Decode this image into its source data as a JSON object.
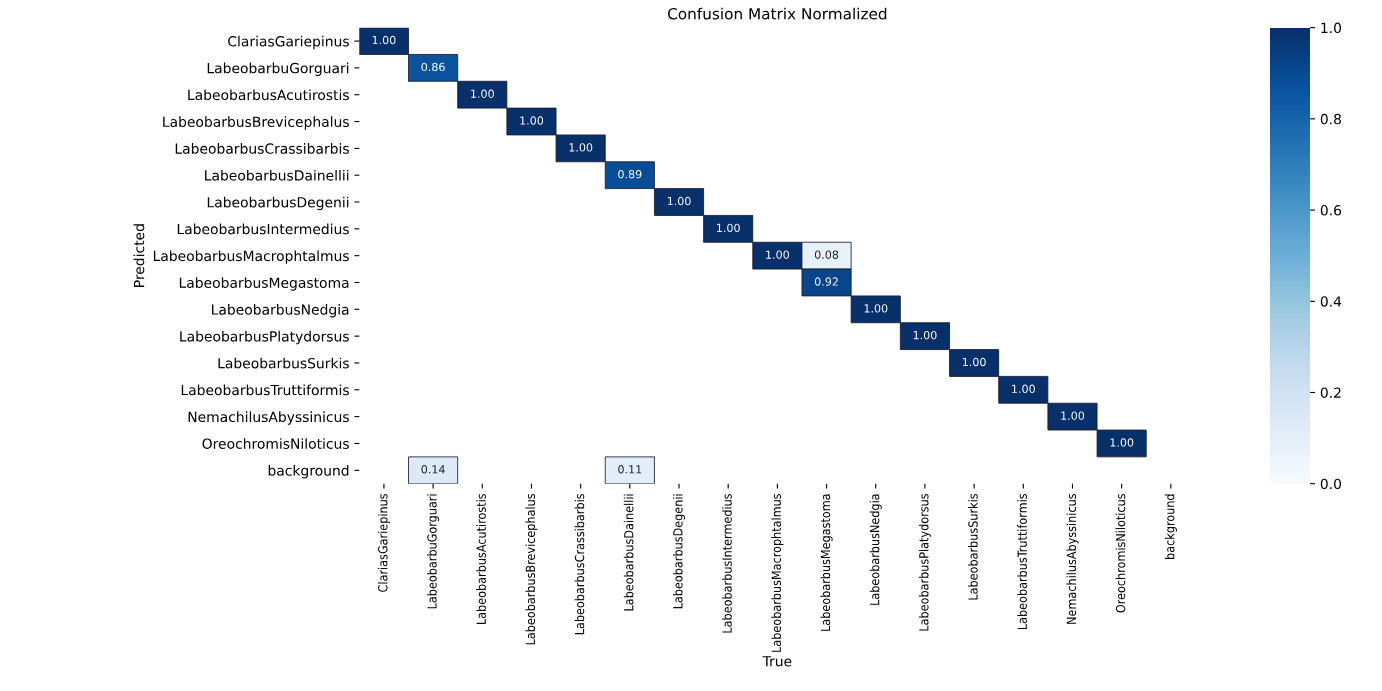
{
  "chart_data": {
    "type": "heatmap",
    "title": "Confusion Matrix Normalized",
    "xlabel": "True",
    "ylabel": "Predicted",
    "categories": [
      "ClariasGariepinus",
      "LabeobarbuGorguari",
      "LabeobarbusAcutirostis",
      "LabeobarbusBrevicephalus",
      "LabeobarbusCrassibarbis",
      "LabeobarbusDainellii",
      "LabeobarbusDegenii",
      "LabeobarbusIntermedius",
      "LabeobarbusMacrophtalmus",
      "LabeobarbusMegastoma",
      "LabeobarbusNedgia",
      "LabeobarbusPlatydorsus",
      "LabeobarbusSurkis",
      "LabeobarbusTruttiformis",
      "NemachilusAbyssinicus",
      "OreochromisNiloticus",
      "background"
    ],
    "y_categories": [
      "ClariasGariepinus",
      "LabeobarbuGorguari",
      "LabeobarbusAcutirostis",
      "LabeobarbusBrevicephalus",
      "LabeobarbusCrassibarbis",
      "LabeobarbusDainellii",
      "LabeobarbusDegenii",
      "LabeobarbusIntermedius",
      "LabeobarbusMacrophtalmus",
      "LabeobarbusMegastoma",
      "LabeobarbusNedgia",
      "LabeobarbusPlatydorsus",
      "LabeobarbusSurkis",
      "LabeobarbusTruttiformis",
      "NemachilusAbyssinicus",
      "OreochromisNiloticus",
      "background"
    ],
    "cells": [
      [
        1.0,
        null,
        null,
        null,
        null,
        null,
        null,
        null,
        null,
        null,
        null,
        null,
        null,
        null,
        null,
        null,
        null
      ],
      [
        null,
        0.86,
        null,
        null,
        null,
        null,
        null,
        null,
        null,
        null,
        null,
        null,
        null,
        null,
        null,
        null,
        null
      ],
      [
        null,
        null,
        1.0,
        null,
        null,
        null,
        null,
        null,
        null,
        null,
        null,
        null,
        null,
        null,
        null,
        null,
        null
      ],
      [
        null,
        null,
        null,
        1.0,
        null,
        null,
        null,
        null,
        null,
        null,
        null,
        null,
        null,
        null,
        null,
        null,
        null
      ],
      [
        null,
        null,
        null,
        null,
        1.0,
        null,
        null,
        null,
        null,
        null,
        null,
        null,
        null,
        null,
        null,
        null,
        null
      ],
      [
        null,
        null,
        null,
        null,
        null,
        0.89,
        null,
        null,
        null,
        null,
        null,
        null,
        null,
        null,
        null,
        null,
        null
      ],
      [
        null,
        null,
        null,
        null,
        null,
        null,
        1.0,
        null,
        null,
        null,
        null,
        null,
        null,
        null,
        null,
        null,
        null
      ],
      [
        null,
        null,
        null,
        null,
        null,
        null,
        null,
        1.0,
        null,
        null,
        null,
        null,
        null,
        null,
        null,
        null,
        null
      ],
      [
        null,
        null,
        null,
        null,
        null,
        null,
        null,
        null,
        1.0,
        0.08,
        null,
        null,
        null,
        null,
        null,
        null,
        null
      ],
      [
        null,
        null,
        null,
        null,
        null,
        null,
        null,
        null,
        null,
        0.92,
        null,
        null,
        null,
        null,
        null,
        null,
        null
      ],
      [
        null,
        null,
        null,
        null,
        null,
        null,
        null,
        null,
        null,
        null,
        1.0,
        null,
        null,
        null,
        null,
        null,
        null
      ],
      [
        null,
        null,
        null,
        null,
        null,
        null,
        null,
        null,
        null,
        null,
        null,
        1.0,
        null,
        null,
        null,
        null,
        null
      ],
      [
        null,
        null,
        null,
        null,
        null,
        null,
        null,
        null,
        null,
        null,
        null,
        null,
        1.0,
        null,
        null,
        null,
        null
      ],
      [
        null,
        null,
        null,
        null,
        null,
        null,
        null,
        null,
        null,
        null,
        null,
        null,
        null,
        1.0,
        null,
        null,
        null
      ],
      [
        null,
        null,
        null,
        null,
        null,
        null,
        null,
        null,
        null,
        null,
        null,
        null,
        null,
        null,
        1.0,
        null,
        null
      ],
      [
        null,
        null,
        null,
        null,
        null,
        null,
        null,
        null,
        null,
        null,
        null,
        null,
        null,
        null,
        null,
        1.0,
        null
      ],
      [
        null,
        0.14,
        null,
        null,
        null,
        0.11,
        null,
        null,
        null,
        null,
        null,
        null,
        null,
        null,
        null,
        null,
        null
      ]
    ],
    "clim": [
      0.0,
      1.0
    ],
    "cticks": [
      {
        "value": 0.0,
        "label": "0.0"
      },
      0.2,
      0.4,
      0.6,
      0.8,
      {
        "value": 1.0,
        "label": "1.0"
      }
    ],
    "cell_labels": [
      [
        "1.00",
        null,
        null,
        null,
        null,
        null,
        null,
        null,
        null,
        null,
        null,
        null,
        null,
        null,
        null,
        null,
        null
      ],
      [
        null,
        "0.86",
        null,
        null,
        null,
        null,
        null,
        null,
        null,
        null,
        null,
        null,
        null,
        null,
        null,
        null,
        null
      ],
      [
        null,
        null,
        "1.00",
        null,
        null,
        null,
        null,
        null,
        null,
        null,
        null,
        null,
        null,
        null,
        null,
        null,
        null
      ],
      [
        null,
        null,
        null,
        "1.00",
        null,
        null,
        null,
        null,
        null,
        null,
        null,
        null,
        null,
        null,
        null,
        null,
        null
      ],
      [
        null,
        null,
        null,
        null,
        "1.00",
        null,
        null,
        null,
        null,
        null,
        null,
        null,
        null,
        null,
        null,
        null,
        null
      ],
      [
        null,
        null,
        null,
        null,
        null,
        "0.89",
        null,
        null,
        null,
        null,
        null,
        null,
        null,
        null,
        null,
        null,
        null
      ],
      [
        null,
        null,
        null,
        null,
        null,
        null,
        "1.00",
        null,
        null,
        null,
        null,
        null,
        null,
        null,
        null,
        null,
        null
      ],
      [
        null,
        null,
        null,
        null,
        null,
        null,
        null,
        "1.00",
        null,
        null,
        null,
        null,
        null,
        null,
        null,
        null,
        null
      ],
      [
        null,
        null,
        null,
        null,
        null,
        null,
        null,
        null,
        "1.00",
        "0.08",
        null,
        null,
        null,
        null,
        null,
        null,
        null
      ],
      [
        null,
        null,
        null,
        null,
        null,
        null,
        null,
        null,
        null,
        "0.92",
        null,
        null,
        null,
        null,
        null,
        null,
        null
      ],
      [
        null,
        null,
        null,
        null,
        null,
        null,
        null,
        null,
        null,
        null,
        "1.00",
        null,
        null,
        null,
        null,
        null,
        null
      ],
      [
        null,
        null,
        null,
        null,
        null,
        null,
        null,
        null,
        null,
        null,
        null,
        "1.00",
        null,
        null,
        null,
        null,
        null
      ],
      [
        null,
        null,
        null,
        null,
        null,
        null,
        null,
        null,
        null,
        null,
        null,
        null,
        "1.00",
        null,
        null,
        null,
        null
      ],
      [
        null,
        null,
        null,
        null,
        null,
        null,
        null,
        null,
        null,
        null,
        null,
        null,
        null,
        "1.00",
        null,
        null,
        null
      ],
      [
        null,
        null,
        null,
        null,
        null,
        null,
        null,
        null,
        null,
        null,
        null,
        null,
        null,
        null,
        "1.00",
        null,
        null
      ],
      [
        null,
        null,
        null,
        null,
        null,
        null,
        null,
        null,
        null,
        null,
        null,
        null,
        null,
        null,
        null,
        "1.00",
        null
      ],
      [
        null,
        "0.14",
        null,
        null,
        null,
        "0.11",
        null,
        null,
        null,
        null,
        null,
        null,
        null,
        null,
        null,
        null,
        null
      ]
    ]
  }
}
